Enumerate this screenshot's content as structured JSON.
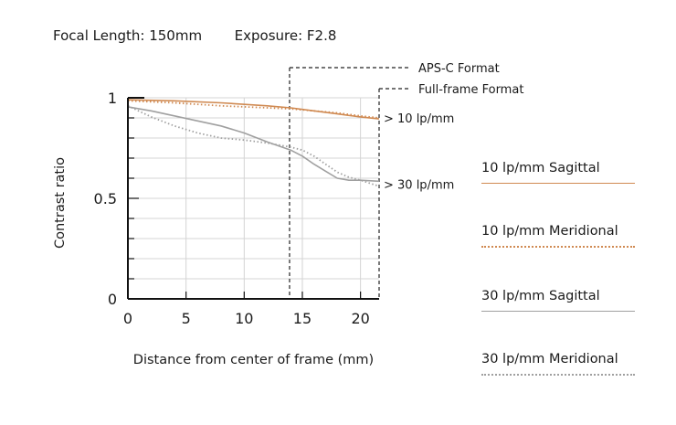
{
  "header": {
    "focal_label": "Focal Length:",
    "focal_value": "150mm",
    "exposure_label": "Exposure:",
    "exposure_value": "F2.8"
  },
  "chart_data": {
    "type": "line",
    "xlabel": "Distance from center of frame (mm)",
    "ylabel": "Contrast ratio",
    "xlim": [
      0,
      21.6
    ],
    "ylim": [
      0,
      1
    ],
    "xticks": [
      0,
      5,
      10,
      15,
      20
    ],
    "yticks": [
      0,
      0.5,
      1
    ],
    "yticklabels": [
      "0",
      "0.5",
      "1"
    ],
    "grid": true,
    "format_markers": [
      {
        "label": "APS-C Format",
        "x": 13.9
      },
      {
        "label": "Full-frame Format",
        "x": 21.6
      }
    ],
    "group_labels": [
      {
        "label": "> 10 lp/mm",
        "y": 0.9
      },
      {
        "label": "> 30 lp/mm",
        "y": 0.57
      }
    ],
    "series": [
      {
        "name": "10 lp/mm Sagittal",
        "color": "#d08a52",
        "style": "solid",
        "x": [
          0,
          4,
          8,
          12,
          14,
          16,
          18,
          20,
          21.6
        ],
        "y": [
          0.99,
          0.985,
          0.975,
          0.96,
          0.95,
          0.935,
          0.92,
          0.905,
          0.895
        ]
      },
      {
        "name": "10 lp/mm Meridional",
        "color": "#d08a52",
        "style": "dotted",
        "x": [
          0,
          4,
          8,
          12,
          14,
          16,
          18,
          20,
          21.6
        ],
        "y": [
          0.985,
          0.975,
          0.96,
          0.95,
          0.945,
          0.935,
          0.925,
          0.91,
          0.9
        ]
      },
      {
        "name": "30 lp/mm Sagittal",
        "color": "#a0a0a0",
        "style": "solid",
        "x": [
          0,
          2,
          4,
          6,
          8,
          10,
          12,
          14,
          15,
          16,
          17,
          18,
          19,
          20,
          21.6
        ],
        "y": [
          0.955,
          0.935,
          0.91,
          0.885,
          0.86,
          0.825,
          0.78,
          0.74,
          0.71,
          0.67,
          0.635,
          0.6,
          0.59,
          0.59,
          0.585
        ]
      },
      {
        "name": "30 lp/mm Meridional",
        "color": "#a0a0a0",
        "style": "dotted",
        "x": [
          0,
          2,
          4,
          6,
          8,
          10,
          12,
          14,
          15,
          16,
          17,
          18,
          19,
          20,
          21.6
        ],
        "y": [
          0.96,
          0.905,
          0.86,
          0.825,
          0.8,
          0.79,
          0.775,
          0.755,
          0.74,
          0.71,
          0.67,
          0.63,
          0.605,
          0.59,
          0.56
        ]
      }
    ]
  },
  "legend": [
    {
      "label": "10 lp/mm Sagittal",
      "color": "#d08a52",
      "style": "solid"
    },
    {
      "label": "10 lp/mm Meridional",
      "color": "#d08a52",
      "style": "dotted"
    },
    {
      "label": "30 lp/mm Sagittal",
      "color": "#a0a0a0",
      "style": "solid"
    },
    {
      "label": "30 lp/mm Meridional",
      "color": "#a0a0a0",
      "style": "dotted"
    }
  ]
}
